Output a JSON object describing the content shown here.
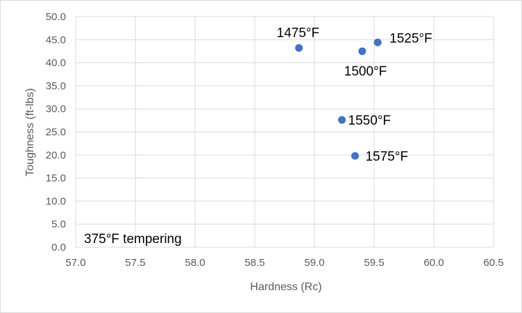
{
  "chart_data": {
    "type": "scatter",
    "xlabel": "Hardness (Rc)",
    "ylabel": "Toughness (ft-lbs)",
    "xlim": [
      57.0,
      60.5
    ],
    "ylim": [
      0.0,
      50.0
    ],
    "x_ticks": [
      "57.0",
      "57.5",
      "58.0",
      "58.5",
      "59.0",
      "59.5",
      "60.0",
      "60.5"
    ],
    "y_ticks": [
      "0.0",
      "5.0",
      "10.0",
      "15.0",
      "20.0",
      "25.0",
      "30.0",
      "35.0",
      "40.0",
      "45.0",
      "50.0"
    ],
    "grid": true,
    "series": [
      {
        "points": [
          {
            "x": 58.87,
            "y": 43.2,
            "label": "1475°F"
          },
          {
            "x": 59.4,
            "y": 42.5,
            "label": "1500°F"
          },
          {
            "x": 59.53,
            "y": 44.4,
            "label": "1525°F"
          },
          {
            "x": 59.23,
            "y": 27.6,
            "label": "1550°F"
          },
          {
            "x": 59.34,
            "y": 19.8,
            "label": "1575°F"
          }
        ]
      }
    ],
    "marker_color": "#4472c4",
    "annotation": "375°F tempering"
  }
}
